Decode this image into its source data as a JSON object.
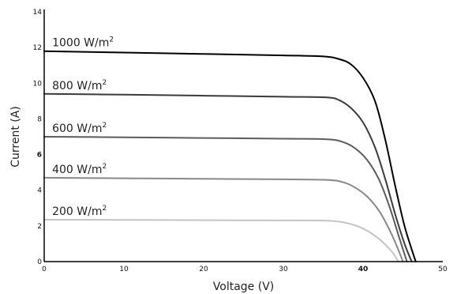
{
  "chart_data": {
    "type": "line",
    "title": "",
    "xlabel": "Voltage (V)",
    "ylabel": "Current (A)",
    "xlim": [
      0,
      50
    ],
    "ylim": [
      0,
      14
    ],
    "x_ticks": [
      {
        "value": 0,
        "label": "0",
        "bold": false
      },
      {
        "value": 10,
        "label": "10",
        "bold": false
      },
      {
        "value": 20,
        "label": "20",
        "bold": false
      },
      {
        "value": 30,
        "label": "30",
        "bold": false
      },
      {
        "value": 40,
        "label": "40",
        "bold": true
      },
      {
        "value": 50,
        "label": "50",
        "bold": false
      }
    ],
    "y_ticks": [
      {
        "value": 0,
        "label": "0",
        "bold": false
      },
      {
        "value": 2,
        "label": "2",
        "bold": false
      },
      {
        "value": 4,
        "label": "4",
        "bold": false
      },
      {
        "value": 6,
        "label": "6",
        "bold": true
      },
      {
        "value": 8,
        "label": "8",
        "bold": false
      },
      {
        "value": 10,
        "label": "10",
        "bold": false
      },
      {
        "value": 12,
        "label": "12",
        "bold": false
      },
      {
        "value": 14,
        "label": "14",
        "bold": false
      }
    ],
    "grid": false,
    "legend": "none",
    "series": [
      {
        "name": "1000 W/m",
        "name_sup": "2",
        "color": "#000000",
        "points": [
          [
            0,
            11.8
          ],
          [
            10,
            11.72
          ],
          [
            20,
            11.64
          ],
          [
            30,
            11.56
          ],
          [
            35,
            11.5
          ],
          [
            37,
            11.35
          ],
          [
            38.5,
            11.05
          ],
          [
            40,
            10.3
          ],
          [
            41.5,
            9.0
          ],
          [
            42.8,
            6.8
          ],
          [
            44,
            4.3
          ],
          [
            45.2,
            2.0
          ],
          [
            46.2,
            0.55
          ],
          [
            46.6,
            0
          ]
        ]
      },
      {
        "name": "800 W/m",
        "name_sup": "2",
        "color": "#3a3a3a",
        "points": [
          [
            0,
            9.4
          ],
          [
            10,
            9.36
          ],
          [
            20,
            9.3
          ],
          [
            30,
            9.24
          ],
          [
            35.5,
            9.2
          ],
          [
            37,
            9.05
          ],
          [
            38.5,
            8.6
          ],
          [
            40,
            7.8
          ],
          [
            41.5,
            6.4
          ],
          [
            42.8,
            4.6
          ],
          [
            44,
            2.7
          ],
          [
            45.2,
            1.0
          ],
          [
            46.1,
            0
          ]
        ]
      },
      {
        "name": "600 W/m",
        "name_sup": "2",
        "color": "#5c5c5c",
        "points": [
          [
            0,
            7.0
          ],
          [
            10,
            6.97
          ],
          [
            20,
            6.93
          ],
          [
            30,
            6.89
          ],
          [
            35.5,
            6.86
          ],
          [
            37.5,
            6.7
          ],
          [
            39,
            6.35
          ],
          [
            40.5,
            5.7
          ],
          [
            42,
            4.6
          ],
          [
            43.3,
            3.1
          ],
          [
            44.5,
            1.4
          ],
          [
            45.5,
            0
          ]
        ]
      },
      {
        "name": "400 W/m",
        "name_sup": "2",
        "color": "#888888",
        "points": [
          [
            0,
            4.7
          ],
          [
            10,
            4.67
          ],
          [
            20,
            4.64
          ],
          [
            30,
            4.61
          ],
          [
            35.5,
            4.58
          ],
          [
            37.5,
            4.45
          ],
          [
            39,
            4.15
          ],
          [
            40.5,
            3.65
          ],
          [
            42,
            2.85
          ],
          [
            43.3,
            1.8
          ],
          [
            44.3,
            0.8
          ],
          [
            45.0,
            0
          ]
        ]
      },
      {
        "name": "200 W/m",
        "name_sup": "2",
        "color": "#c4c4c4",
        "points": [
          [
            0,
            2.35
          ],
          [
            10,
            2.34
          ],
          [
            20,
            2.32
          ],
          [
            30,
            2.31
          ],
          [
            35,
            2.3
          ],
          [
            37,
            2.24
          ],
          [
            38.5,
            2.1
          ],
          [
            40,
            1.85
          ],
          [
            41.5,
            1.45
          ],
          [
            42.8,
            0.95
          ],
          [
            43.8,
            0.45
          ],
          [
            44.4,
            0
          ]
        ]
      }
    ]
  }
}
